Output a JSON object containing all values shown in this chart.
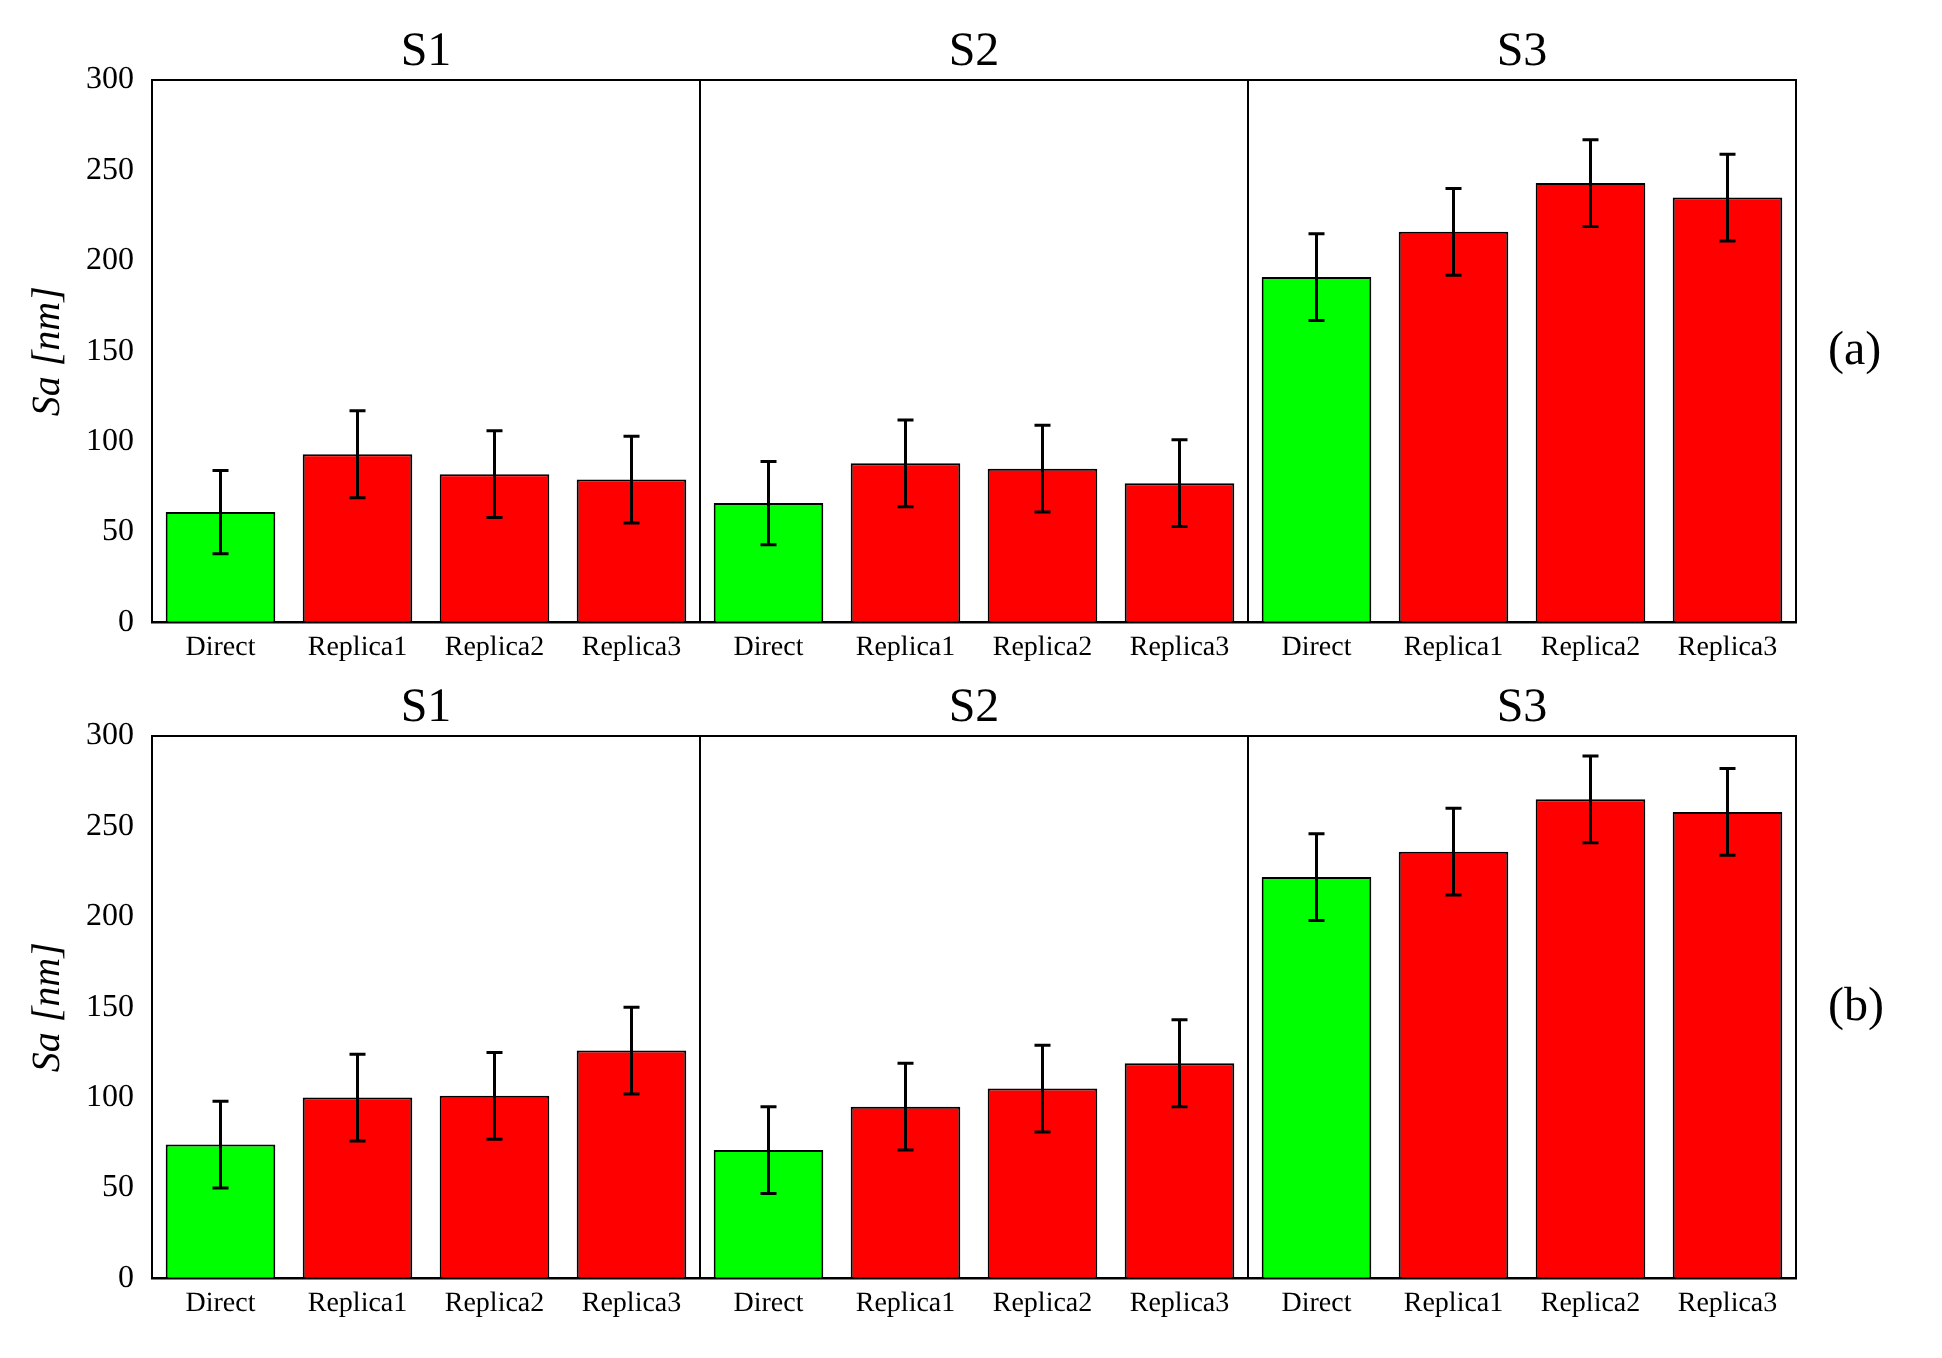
{
  "chart_data": [
    {
      "type": "bar",
      "ylabel": "Sa [nm]",
      "annotations": [
        "S1",
        "S2",
        "S3",
        "(a)"
      ],
      "categories": [
        "Direct",
        "Replica1",
        "Replica2",
        "Replica3",
        "Direct",
        "Replica1",
        "Replica2",
        "Replica3",
        "Direct",
        "Replica1",
        "Replica2",
        "Replica3"
      ],
      "values": [
        61,
        93,
        82,
        79,
        66,
        88,
        85,
        77,
        191,
        216,
        243,
        235
      ],
      "errors": [
        23,
        24,
        24,
        24,
        23,
        24,
        24,
        24,
        24,
        24,
        24,
        24
      ],
      "colors": [
        "#00ff00",
        "#ff0000",
        "#ff0000",
        "#ff0000",
        "#00ff00",
        "#ff0000",
        "#ff0000",
        "#ff0000",
        "#00ff00",
        "#ff0000",
        "#ff0000",
        "#ff0000"
      ],
      "ylim": [
        0,
        300
      ],
      "yticks": [
        0,
        50,
        100,
        150,
        200,
        250,
        300
      ],
      "grid": false,
      "legend": false
    },
    {
      "type": "bar",
      "ylabel": "Sa [nm]",
      "annotations": [
        "S1",
        "S2",
        "S3",
        "(b)"
      ],
      "categories": [
        "Direct",
        "Replica1",
        "Replica2",
        "Replica3",
        "Direct",
        "Replica1",
        "Replica2",
        "Replica3",
        "Direct",
        "Replica1",
        "Replica2",
        "Replica3"
      ],
      "values": [
        74,
        100,
        101,
        126,
        71,
        95,
        105,
        119,
        222,
        236,
        265,
        258
      ],
      "errors": [
        24,
        24,
        24,
        24,
        24,
        24,
        24,
        24,
        24,
        24,
        24,
        24
      ],
      "colors": [
        "#00ff00",
        "#ff0000",
        "#ff0000",
        "#ff0000",
        "#00ff00",
        "#ff0000",
        "#ff0000",
        "#ff0000",
        "#00ff00",
        "#ff0000",
        "#ff0000",
        "#ff0000"
      ],
      "ylim": [
        0,
        300
      ],
      "yticks": [
        0,
        50,
        100,
        150,
        200,
        250,
        300
      ],
      "grid": false,
      "legend": false
    }
  ]
}
